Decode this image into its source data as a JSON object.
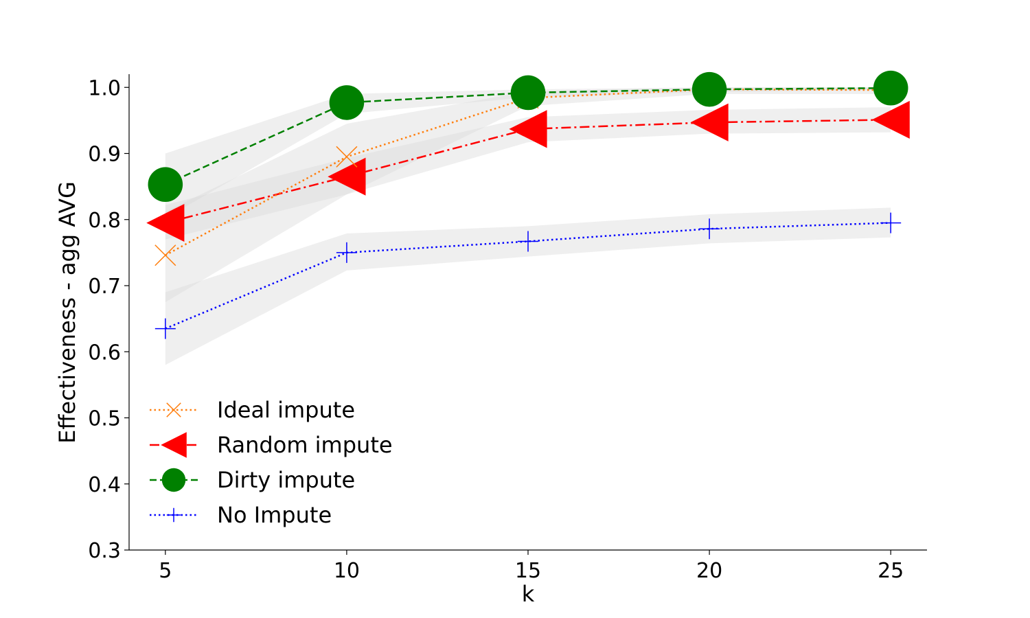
{
  "chart_data": {
    "type": "line",
    "xlabel": "k",
    "ylabel": "Effectiveness - agg AVG",
    "x": [
      5,
      10,
      15,
      20,
      25
    ],
    "xlim": [
      4,
      26
    ],
    "ylim": [
      0.3,
      1.02
    ],
    "xticks": [
      "5",
      "10",
      "15",
      "20",
      "25"
    ],
    "yticks": [
      "0.3",
      "0.4",
      "0.5",
      "0.6",
      "0.7",
      "0.8",
      "0.9",
      "1.0"
    ],
    "grid": false,
    "legend_position": "lower-left",
    "band_color": "#d9d9d9",
    "series": [
      {
        "name": "Ideal impute",
        "color": "#ff7f0e",
        "line_style": "dotted",
        "marker": "x",
        "values": [
          0.746,
          0.895,
          0.984,
          0.997,
          0.996
        ],
        "lower": [
          0.675,
          0.838,
          0.972,
          0.99,
          0.99
        ],
        "upper": [
          0.812,
          0.945,
          0.994,
          1.0,
          1.0
        ]
      },
      {
        "name": "Random impute",
        "color": "#ff0000",
        "line_style": "dashdot",
        "marker": "triangle-left",
        "values": [
          0.795,
          0.865,
          0.937,
          0.947,
          0.951
        ],
        "lower": [
          0.77,
          0.838,
          0.917,
          0.93,
          0.932
        ],
        "upper": [
          0.822,
          0.893,
          0.955,
          0.966,
          0.97
        ]
      },
      {
        "name": "Dirty impute",
        "color": "#008000",
        "line_style": "dashed",
        "marker": "circle",
        "values": [
          0.853,
          0.977,
          0.992,
          0.997,
          0.999
        ],
        "lower": [
          0.802,
          0.96,
          0.985,
          0.993,
          0.996
        ],
        "upper": [
          0.9,
          0.99,
          0.997,
          1.0,
          1.0
        ]
      },
      {
        "name": "No Impute",
        "color": "#0000ff",
        "line_style": "dotted",
        "marker": "plus",
        "values": [
          0.635,
          0.75,
          0.767,
          0.786,
          0.795
        ],
        "lower": [
          0.58,
          0.723,
          0.744,
          0.764,
          0.773
        ],
        "upper": [
          0.69,
          0.779,
          0.79,
          0.808,
          0.818
        ]
      }
    ]
  }
}
